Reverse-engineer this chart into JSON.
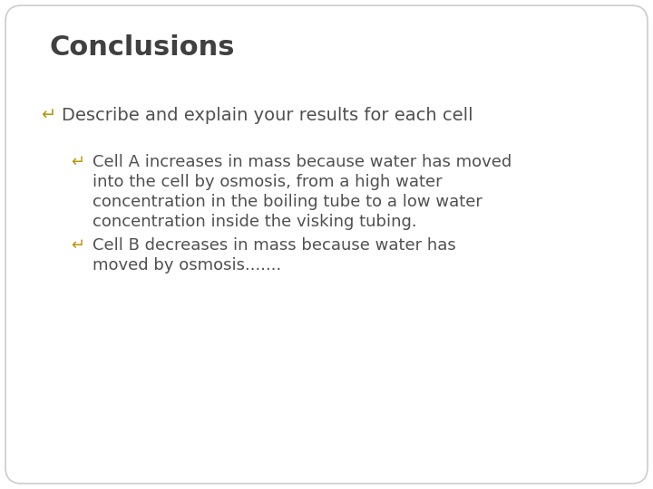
{
  "title": "Conclusions",
  "title_color": "#404040",
  "title_fontsize": 22,
  "title_weight": "bold",
  "background_color": "#ffffff",
  "border_color": "#cccccc",
  "bullet_color": "#b8960c",
  "text_color": "#505050",
  "bullet_char": "↵",
  "level1_text": "Describe and explain your results for each cell",
  "level1_fontsize": 14,
  "level2_items": [
    {
      "lines": [
        "Cell A increases in mass because water has moved",
        "into the cell by osmosis, from a high water",
        "concentration in the boiling tube to a low water",
        "concentration inside the visking tubing."
      ]
    },
    {
      "lines": [
        "Cell B decreases in mass because water has",
        "moved by osmosis......."
      ]
    }
  ],
  "level2_fontsize": 13,
  "figsize": [
    7.2,
    5.4
  ],
  "dpi": 100
}
